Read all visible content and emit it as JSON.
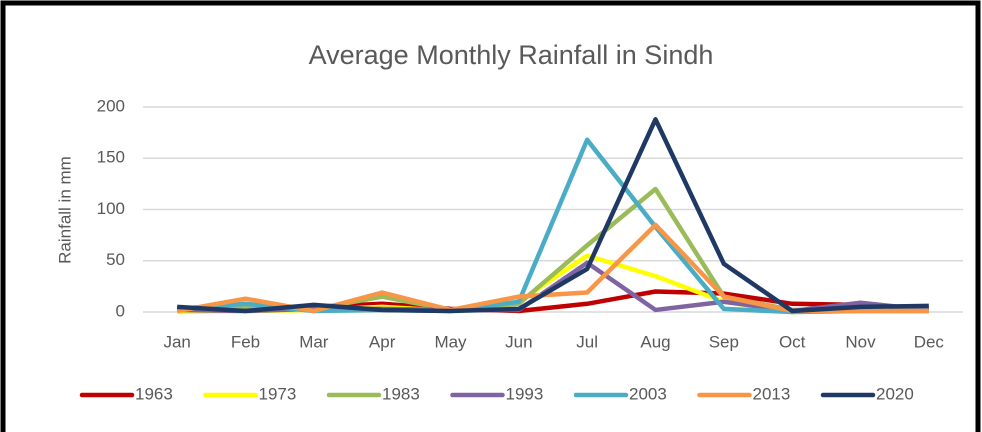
{
  "chart_data": {
    "type": "line",
    "title": "Average Monthly Rainfall in Sindh",
    "y_label": "Rainfall in mm",
    "categories": [
      "Jan",
      "Feb",
      "Mar",
      "Apr",
      "May",
      "Jun",
      "Jul",
      "Aug",
      "Sep",
      "Oct",
      "Nov",
      "Dec"
    ],
    "series": [
      {
        "name": "1963",
        "color": "#c00000",
        "values": [
          3,
          2,
          5,
          8,
          3,
          1,
          8,
          20,
          18,
          8,
          7,
          2
        ]
      },
      {
        "name": "1973",
        "color": "#ffff00",
        "values": [
          0,
          1,
          2,
          5,
          1,
          10,
          55,
          35,
          10,
          0,
          1,
          1
        ]
      },
      {
        "name": "1983",
        "color": "#9bbb59",
        "values": [
          2,
          5,
          3,
          15,
          2,
          8,
          65,
          120,
          15,
          2,
          3,
          3
        ]
      },
      {
        "name": "1993",
        "color": "#8064a2",
        "values": [
          2,
          1,
          3,
          3,
          2,
          2,
          48,
          2,
          10,
          1,
          9,
          2
        ]
      },
      {
        "name": "2003",
        "color": "#4bacc6",
        "values": [
          3,
          8,
          1,
          2,
          1,
          10,
          168,
          83,
          3,
          0,
          1,
          1
        ]
      },
      {
        "name": "2013",
        "color": "#f79646",
        "values": [
          1,
          13,
          1,
          19,
          2,
          15,
          19,
          85,
          15,
          1,
          1,
          1
        ]
      },
      {
        "name": "2020",
        "color": "#1f3864",
        "values": [
          5,
          1,
          7,
          2,
          1,
          3,
          42,
          188,
          47,
          1,
          5,
          6
        ]
      }
    ],
    "ylim": [
      0,
      200
    ],
    "yticks": [
      0,
      50,
      100,
      150,
      200
    ],
    "grid": true,
    "legend": "bottom"
  }
}
